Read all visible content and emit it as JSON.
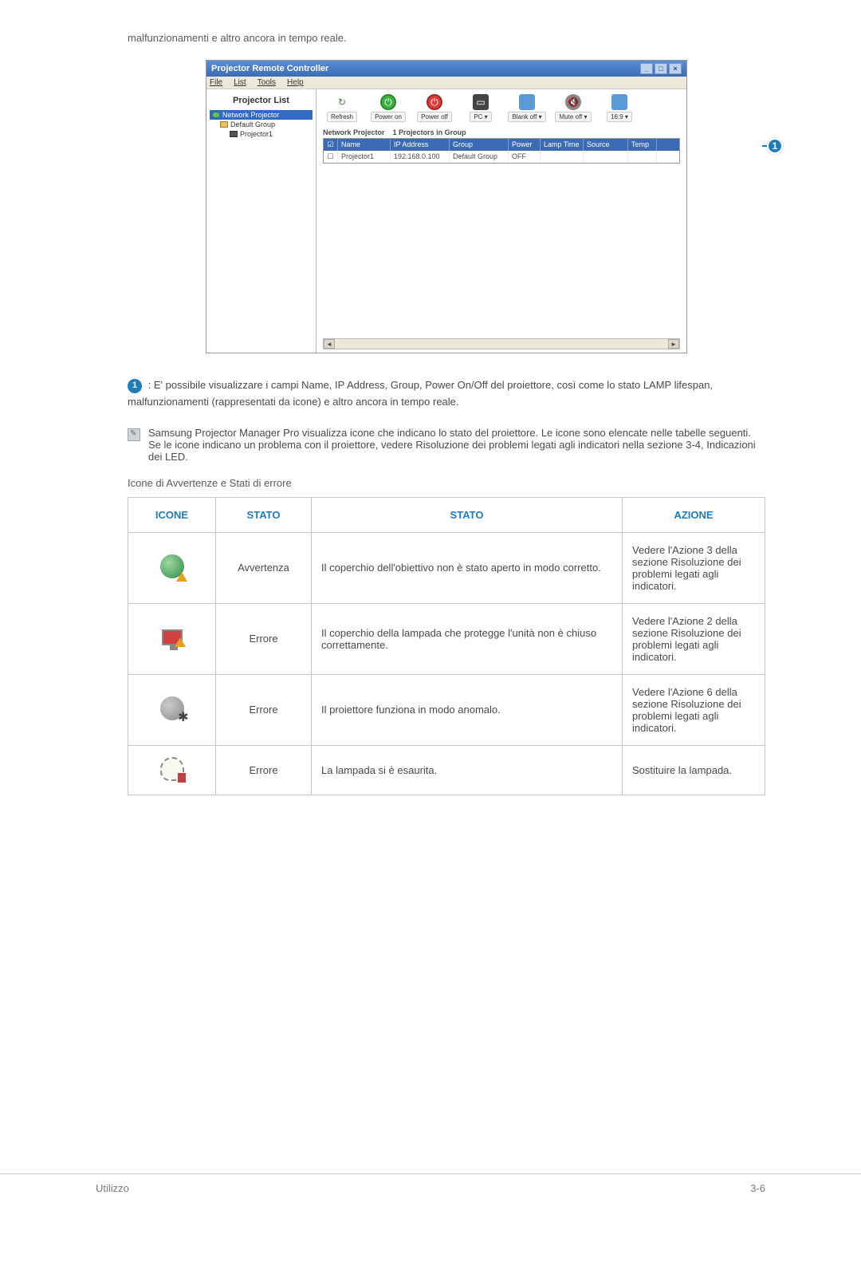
{
  "intro": "malfunzionamenti e altro ancora in tempo reale.",
  "app": {
    "title": "Projector Remote Controller",
    "menu": {
      "file": "File",
      "list": "List",
      "tools": "Tools",
      "help": "Help"
    },
    "sidebar": {
      "title": "Projector List",
      "root": "Network Projector",
      "group": "Default Group",
      "item": "Projector1"
    },
    "toolbar": {
      "refresh": "Refresh",
      "power_on": "Power on",
      "power_off": "Power off",
      "pc": "PC",
      "blank": "Blank off",
      "mute": "Mute off",
      "ratio": "16:9"
    },
    "table_caption_left": "Network Projector",
    "table_caption_right": "1 Projectors in Group",
    "headers": {
      "name": "Name",
      "ip": "IP Address",
      "group": "Group",
      "power": "Power",
      "lamp": "Lamp Time",
      "source": "Source",
      "temp": "Temp"
    },
    "row": {
      "name": "Projector1",
      "ip": "192.168.0.100",
      "group": "Default Group",
      "power": "OFF"
    }
  },
  "callout": {
    "badge": "1",
    "text": " : E' possibile visualizzare i campi Name, IP Address, Group, Power On/Off del proiettore, così come lo stato LAMP lifespan, malfunzionamenti (rappresentati da icone) e altro ancora in tempo reale."
  },
  "note": "Samsung Projector Manager Pro visualizza icone che indicano lo stato del proiettore. Le icone sono elencate nelle tabelle seguenti. Se le icone indicano un problema con il proiettore, vedere Risoluzione dei problemi legati agli indicatori nella sezione 3-4, Indicazioni dei LED.",
  "table_title": "Icone di Avvertenze e Stati di errore",
  "table": {
    "headers": {
      "icone": "ICONE",
      "stato": "STATO",
      "stato2": "STATO",
      "azione": "AZIONE"
    },
    "rows": [
      {
        "icon": "globe",
        "stato": "Avvertenza",
        "desc": "Il coperchio dell'obiettivo non è stato aperto in modo corretto.",
        "action": "Vedere l'Azione 3 della sezione Risoluzione dei problemi legati agli indicatori."
      },
      {
        "icon": "screen",
        "stato": "Errore",
        "desc": "Il coperchio della lampada che protegge l'unità non è chiuso correttamente.",
        "action": "Vedere l'Azione 2 della sezione Risoluzione dei problemi legati agli indicatori."
      },
      {
        "icon": "gear",
        "stato": "Errore",
        "desc": "Il proiettore funziona in modo anomalo.",
        "action": "Vedere l'Azione 6 della sezione Risoluzione dei problemi legati agli indicatori."
      },
      {
        "icon": "bulb",
        "stato": "Errore",
        "desc": "La lampada si è esaurita.",
        "action": "Sostituire la lampada."
      }
    ]
  },
  "footer": {
    "left": "Utilizzo",
    "right": "3-6"
  }
}
